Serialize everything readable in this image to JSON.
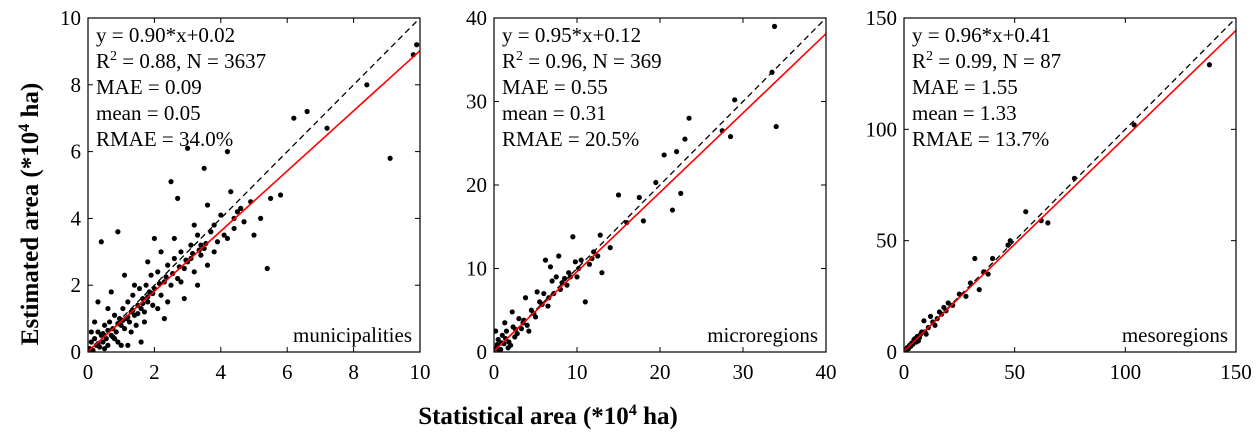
{
  "figure": {
    "xlabel": "Statistical area (*10",
    "xlabel_sup": "4",
    "xlabel_unit": " ha)",
    "ylabel": "Estimated area (*10",
    "ylabel_sup": "4",
    "ylabel_unit": " ha)"
  },
  "chart_data": [
    {
      "type": "scatter",
      "region_label": "municipalities",
      "xlim": [
        0,
        10
      ],
      "ylim": [
        0,
        10
      ],
      "xticks": [
        0,
        2,
        4,
        6,
        8,
        10
      ],
      "yticks": [
        0,
        2,
        4,
        6,
        8,
        10
      ],
      "fit": {
        "slope": 0.9,
        "intercept": 0.02
      },
      "stats": {
        "eq": "y = 0.90*x+0.02",
        "r2_prefix": "R",
        "r2_sup": "2",
        "r2_rest": " = 0.88, N = 3637",
        "mae": "MAE = 0.09",
        "mean": "mean = 0.05",
        "rmae": "RMAE = 34.0%"
      },
      "points": [
        [
          0.05,
          0.1
        ],
        [
          0.1,
          0.3
        ],
        [
          0.15,
          0.05
        ],
        [
          0.2,
          0.4
        ],
        [
          0.25,
          0.2
        ],
        [
          0.3,
          0.6
        ],
        [
          0.35,
          0.15
        ],
        [
          0.4,
          0.5
        ],
        [
          0.45,
          0.3
        ],
        [
          0.5,
          0.8
        ],
        [
          0.55,
          0.4
        ],
        [
          0.6,
          0.2
        ],
        [
          0.65,
          0.9
        ],
        [
          0.7,
          0.5
        ],
        [
          0.75,
          0.7
        ],
        [
          0.8,
          1.1
        ],
        [
          0.85,
          0.6
        ],
        [
          0.9,
          0.3
        ],
        [
          0.95,
          1.0
        ],
        [
          1.0,
          0.8
        ],
        [
          1.05,
          1.3
        ],
        [
          1.1,
          0.7
        ],
        [
          1.15,
          1.0
        ],
        [
          1.2,
          1.5
        ],
        [
          1.25,
          0.9
        ],
        [
          1.3,
          1.2
        ],
        [
          1.35,
          1.7
        ],
        [
          1.4,
          1.1
        ],
        [
          1.45,
          0.8
        ],
        [
          1.5,
          1.4
        ],
        [
          1.55,
          1.9
        ],
        [
          1.6,
          1.3
        ],
        [
          1.65,
          1.6
        ],
        [
          1.7,
          1.2
        ],
        [
          1.75,
          2.0
        ],
        [
          1.8,
          1.5
        ],
        [
          1.85,
          1.8
        ],
        [
          1.9,
          2.3
        ],
        [
          1.95,
          1.4
        ],
        [
          2.0,
          1.9
        ],
        [
          2.1,
          2.4
        ],
        [
          2.2,
          1.7
        ],
        [
          2.3,
          2.1
        ],
        [
          2.4,
          2.6
        ],
        [
          2.5,
          2.0
        ],
        [
          2.6,
          2.8
        ],
        [
          2.7,
          2.2
        ],
        [
          2.8,
          3.0
        ],
        [
          2.9,
          2.5
        ],
        [
          3.0,
          2.7
        ],
        [
          3.1,
          3.2
        ],
        [
          3.2,
          2.4
        ],
        [
          3.3,
          3.5
        ],
        [
          3.4,
          2.9
        ],
        [
          3.5,
          3.1
        ],
        [
          3.6,
          2.6
        ],
        [
          3.7,
          3.6
        ],
        [
          3.8,
          3.0
        ],
        [
          3.9,
          3.3
        ],
        [
          4.0,
          4.1
        ],
        [
          4.2,
          3.4
        ],
        [
          4.3,
          4.8
        ],
        [
          4.4,
          3.7
        ],
        [
          4.5,
          4.2
        ],
        [
          4.7,
          3.9
        ],
        [
          4.9,
          4.5
        ],
        [
          5.0,
          3.5
        ],
        [
          5.2,
          4.0
        ],
        [
          5.4,
          2.5
        ],
        [
          5.5,
          4.6
        ],
        [
          5.8,
          4.7
        ],
        [
          6.2,
          7.0
        ],
        [
          6.6,
          7.2
        ],
        [
          7.2,
          6.7
        ],
        [
          8.4,
          8.0
        ],
        [
          9.1,
          5.8
        ],
        [
          9.8,
          8.9
        ],
        [
          9.9,
          9.2
        ],
        [
          0.4,
          3.3
        ],
        [
          0.9,
          3.6
        ],
        [
          2.5,
          5.1
        ],
        [
          2.7,
          4.6
        ],
        [
          3.0,
          6.1
        ],
        [
          3.5,
          5.5
        ],
        [
          4.2,
          6.0
        ],
        [
          2.3,
          1.0
        ],
        [
          1.6,
          0.3
        ],
        [
          1.2,
          0.2
        ],
        [
          0.7,
          1.8
        ],
        [
          0.3,
          1.5
        ],
        [
          2.0,
          3.4
        ],
        [
          2.9,
          1.6
        ],
        [
          3.3,
          2.0
        ],
        [
          1.1,
          2.3
        ],
        [
          0.6,
          1.3
        ],
        [
          1.8,
          2.7
        ],
        [
          2.2,
          3.0
        ],
        [
          3.6,
          4.4
        ],
        [
          4.6,
          4.3
        ],
        [
          0.2,
          0.9
        ],
        [
          0.1,
          0.6
        ],
        [
          0.5,
          0.1
        ],
        [
          0.8,
          0.4
        ],
        [
          1.0,
          0.2
        ],
        [
          1.3,
          0.6
        ],
        [
          1.4,
          2.0
        ],
        [
          1.7,
          0.9
        ],
        [
          2.1,
          1.3
        ],
        [
          2.4,
          1.5
        ],
        [
          2.6,
          3.4
        ],
        [
          2.8,
          2.1
        ],
        [
          3.1,
          2.8
        ],
        [
          3.2,
          3.8
        ],
        [
          3.4,
          3.2
        ],
        [
          3.8,
          3.8
        ],
        [
          4.1,
          3.5
        ],
        [
          4.4,
          4.0
        ],
        [
          0.3,
          0.25
        ],
        [
          0.45,
          0.55
        ],
        [
          0.6,
          0.65
        ],
        [
          0.75,
          0.45
        ],
        [
          0.9,
          0.85
        ],
        [
          1.05,
          0.95
        ],
        [
          1.2,
          1.05
        ],
        [
          1.35,
          1.25
        ],
        [
          1.5,
          1.15
        ],
        [
          1.65,
          1.45
        ],
        [
          1.8,
          1.65
        ],
        [
          1.95,
          1.75
        ],
        [
          2.15,
          2.05
        ],
        [
          2.35,
          2.25
        ],
        [
          2.55,
          2.35
        ],
        [
          2.75,
          2.55
        ],
        [
          2.95,
          2.75
        ],
        [
          3.15,
          2.95
        ],
        [
          3.35,
          3.05
        ],
        [
          3.55,
          3.25
        ]
      ]
    },
    {
      "type": "scatter",
      "region_label": "microregions",
      "xlim": [
        0,
        40
      ],
      "ylim": [
        0,
        40
      ],
      "xticks": [
        0,
        10,
        20,
        30,
        40
      ],
      "yticks": [
        0,
        10,
        20,
        30,
        40
      ],
      "fit": {
        "slope": 0.95,
        "intercept": 0.12
      },
      "stats": {
        "eq": "y = 0.95*x+0.12",
        "r2_prefix": "R",
        "r2_sup": "2",
        "r2_rest": " = 0.96, N = 369",
        "mae": "MAE = 0.55",
        "mean": "mean = 0.31",
        "rmae": "RMAE = 20.5%"
      },
      "points": [
        [
          0.3,
          0.5
        ],
        [
          0.5,
          1.5
        ],
        [
          0.8,
          0.3
        ],
        [
          1.0,
          2.0
        ],
        [
          1.2,
          1.0
        ],
        [
          1.5,
          2.5
        ],
        [
          1.8,
          1.2
        ],
        [
          2.0,
          0.8
        ],
        [
          2.3,
          3.0
        ],
        [
          2.5,
          1.8
        ],
        [
          2.8,
          2.2
        ],
        [
          3.0,
          4.0
        ],
        [
          3.3,
          2.8
        ],
        [
          3.5,
          3.5
        ],
        [
          3.8,
          6.5
        ],
        [
          4.0,
          3.2
        ],
        [
          4.5,
          5.0
        ],
        [
          5.0,
          4.2
        ],
        [
          5.5,
          6.0
        ],
        [
          6.0,
          7.0
        ],
        [
          6.2,
          11.0
        ],
        [
          6.5,
          5.5
        ],
        [
          7.0,
          8.5
        ],
        [
          7.5,
          9.0
        ],
        [
          8.0,
          7.5
        ],
        [
          8.5,
          8.8
        ],
        [
          9.0,
          9.5
        ],
        [
          9.5,
          13.8
        ],
        [
          10.0,
          9.0
        ],
        [
          10.5,
          11.0
        ],
        [
          11.0,
          6.0
        ],
        [
          11.5,
          10.5
        ],
        [
          12.0,
          12.0
        ],
        [
          12.5,
          11.5
        ],
        [
          13.0,
          9.5
        ],
        [
          15.0,
          18.8
        ],
        [
          16.0,
          15.5
        ],
        [
          18.0,
          15.7
        ],
        [
          19.5,
          20.3
        ],
        [
          20.5,
          23.6
        ],
        [
          21.5,
          17.0
        ],
        [
          22.0,
          24.0
        ],
        [
          22.5,
          19.0
        ],
        [
          23.0,
          25.5
        ],
        [
          23.5,
          28.0
        ],
        [
          27.5,
          26.5
        ],
        [
          28.5,
          25.8
        ],
        [
          29.0,
          30.2
        ],
        [
          33.5,
          33.5
        ],
        [
          33.8,
          39.0
        ],
        [
          34.0,
          27.0
        ],
        [
          0.2,
          2.5
        ],
        [
          0.6,
          0.1
        ],
        [
          1.3,
          3.5
        ],
        [
          1.7,
          0.5
        ],
        [
          2.2,
          4.8
        ],
        [
          4.2,
          2.5
        ],
        [
          5.2,
          7.2
        ],
        [
          6.8,
          10.2
        ],
        [
          7.8,
          11.5
        ],
        [
          8.8,
          8.0
        ],
        [
          9.8,
          10.8
        ],
        [
          12.8,
          14.0
        ],
        [
          14.0,
          12.5
        ],
        [
          17.5,
          18.5
        ],
        [
          0.4,
          0.9
        ],
        [
          0.9,
          1.1
        ],
        [
          1.4,
          1.6
        ],
        [
          2.6,
          2.7
        ],
        [
          3.6,
          3.8
        ],
        [
          4.8,
          4.6
        ],
        [
          5.8,
          5.7
        ],
        [
          6.6,
          6.5
        ],
        [
          7.2,
          7.0
        ],
        [
          8.2,
          8.3
        ],
        [
          9.2,
          9.0
        ],
        [
          10.2,
          10.0
        ],
        [
          11.8,
          11.2
        ]
      ]
    },
    {
      "type": "scatter",
      "region_label": "mesoregions",
      "xlim": [
        0,
        150
      ],
      "ylim": [
        0,
        150
      ],
      "xticks": [
        0,
        50,
        100,
        150
      ],
      "yticks": [
        0,
        50,
        100,
        150
      ],
      "fit": {
        "slope": 0.96,
        "intercept": 0.41
      },
      "stats": {
        "eq": "y = 0.96*x+0.41",
        "r2_prefix": "R",
        "r2_sup": "2",
        "r2_rest": " = 0.99, N = 87",
        "mae": "MAE = 1.55",
        "mean": "mean = 1.33",
        "rmae": "RMAE = 13.7%"
      },
      "points": [
        [
          1,
          1
        ],
        [
          1.5,
          2
        ],
        [
          2,
          1.5
        ],
        [
          2.5,
          3
        ],
        [
          3,
          2.5
        ],
        [
          3.5,
          4
        ],
        [
          4,
          3.5
        ],
        [
          5,
          6
        ],
        [
          5.5,
          4.5
        ],
        [
          6,
          7
        ],
        [
          7,
          6.5
        ],
        [
          8,
          9
        ],
        [
          9,
          14
        ],
        [
          10,
          8
        ],
        [
          11,
          11
        ],
        [
          12,
          16
        ],
        [
          14,
          12
        ],
        [
          16,
          18
        ],
        [
          18,
          20
        ],
        [
          20,
          22
        ],
        [
          22,
          21
        ],
        [
          25,
          26
        ],
        [
          28,
          25
        ],
        [
          30,
          31
        ],
        [
          32,
          42
        ],
        [
          34,
          28
        ],
        [
          36,
          36
        ],
        [
          38,
          35
        ],
        [
          40,
          42
        ],
        [
          47,
          48
        ],
        [
          48,
          50
        ],
        [
          55,
          63
        ],
        [
          62,
          59
        ],
        [
          65,
          58
        ],
        [
          77,
          78
        ],
        [
          104,
          102
        ],
        [
          138,
          129
        ],
        [
          4.5,
          5.5
        ],
        [
          6.5,
          5
        ],
        [
          7.5,
          8
        ],
        [
          9.5,
          9
        ],
        [
          13,
          13.5
        ],
        [
          15,
          15
        ],
        [
          17,
          17
        ],
        [
          19,
          18.5
        ]
      ]
    }
  ]
}
